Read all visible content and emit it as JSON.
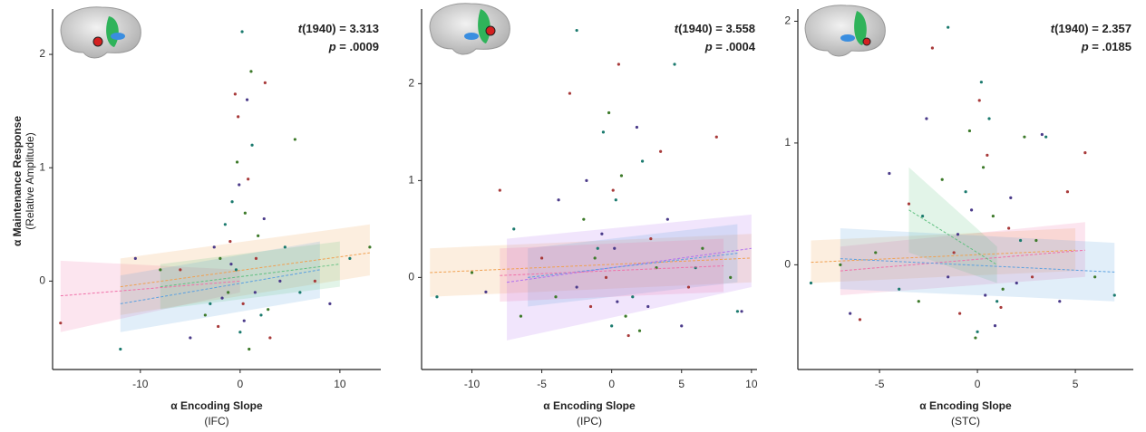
{
  "chart_data": [
    {
      "type": "scatter",
      "x_label": "α Encoding Slope",
      "x_sublabel": "(IFC)",
      "y_label": "α Maintenance Response",
      "y_sublabel": "(Relative Amplitude)",
      "annotations": [
        "t(1940) = 3.313",
        "p = .0009"
      ],
      "xlim": [
        -18.8,
        14.1
      ],
      "xticks": [
        -10,
        0,
        10
      ],
      "ylim": [
        -0.78,
        2.4
      ],
      "yticks": [
        0,
        1,
        2
      ],
      "series": [
        {
          "color": "#1b7a6e",
          "x": [
            0.2,
            -1.5,
            2.1,
            -0.4,
            1.2,
            -3.0,
            4.5,
            0.0,
            -0.8,
            6.0,
            -12.0,
            11.0
          ],
          "values": [
            2.2,
            0.5,
            -0.3,
            0.1,
            1.2,
            -0.2,
            0.3,
            -0.45,
            0.7,
            -0.1,
            -0.6,
            0.2
          ]
        },
        {
          "color": "#a83a3a",
          "x": [
            -0.5,
            1.6,
            -2.2,
            0.8,
            3.0,
            -6.0,
            0.3,
            -1.0,
            7.5,
            -18.0,
            2.5,
            -0.2
          ],
          "values": [
            1.65,
            0.2,
            -0.4,
            0.9,
            -0.5,
            0.1,
            -0.2,
            0.35,
            0.0,
            -0.37,
            1.75,
            1.45
          ]
        },
        {
          "color": "#3d7a2a",
          "x": [
            0.5,
            -1.2,
            1.8,
            -3.5,
            -0.3,
            2.8,
            5.5,
            -8.0,
            0.9,
            13.0,
            -2.0,
            1.1
          ],
          "values": [
            0.6,
            -0.1,
            0.4,
            -0.3,
            1.05,
            -0.25,
            1.25,
            0.1,
            -0.6,
            0.3,
            0.2,
            1.85
          ]
        },
        {
          "color": "#4b3b8a",
          "x": [
            -0.9,
            0.4,
            2.4,
            -2.6,
            1.5,
            -5.0,
            4.0,
            -0.1,
            -10.5,
            9.0,
            0.7,
            -1.8
          ],
          "values": [
            0.15,
            -0.35,
            0.55,
            0.3,
            -0.1,
            -0.5,
            0.0,
            0.85,
            0.2,
            -0.2,
            1.6,
            -0.15
          ]
        }
      ],
      "fits": [
        {
          "color": "#f06fa8",
          "x": [
            -18,
            0
          ],
          "values": [
            -0.13,
            0.0
          ],
          "lower": [
            -0.45,
            -0.1
          ],
          "upper": [
            0.18,
            0.1
          ]
        },
        {
          "color": "#f0a050",
          "x": [
            -12,
            13
          ],
          "values": [
            -0.05,
            0.25
          ],
          "lower": [
            -0.3,
            0.05
          ],
          "upper": [
            0.2,
            0.5
          ]
        },
        {
          "color": "#5aa0e0",
          "x": [
            -12,
            8
          ],
          "values": [
            -0.2,
            0.1
          ],
          "lower": [
            -0.45,
            -0.15
          ],
          "upper": [
            0.05,
            0.35
          ]
        },
        {
          "color": "#60c080",
          "x": [
            -8,
            10
          ],
          "values": [
            -0.05,
            0.15
          ],
          "lower": [
            -0.25,
            -0.05
          ],
          "upper": [
            0.15,
            0.35
          ]
        }
      ]
    },
    {
      "type": "scatter",
      "x_label": "α Encoding Slope",
      "x_sublabel": "(IPC)",
      "annotations": [
        "t(1940) = 3.558",
        "p = .0004"
      ],
      "xlim": [
        -13.6,
        10.4
      ],
      "xticks": [
        -10,
        -5,
        0,
        5,
        10
      ],
      "ylim": [
        -0.95,
        2.77
      ],
      "yticks": [
        0,
        1,
        2
      ],
      "series": [
        {
          "color": "#1b7a6e",
          "x": [
            -2.5,
            0.3,
            1.5,
            -1.0,
            4.5,
            -7.0,
            0.0,
            2.2,
            -12.5,
            9.0,
            -0.6,
            6.0
          ],
          "values": [
            2.55,
            0.8,
            -0.2,
            0.3,
            2.2,
            0.5,
            -0.5,
            1.2,
            -0.2,
            -0.35,
            1.5,
            0.1
          ]
        },
        {
          "color": "#a83a3a",
          "x": [
            0.5,
            -1.5,
            2.8,
            -3.0,
            0.1,
            5.5,
            -5.0,
            1.2,
            7.5,
            -0.4,
            -8.0,
            3.5
          ],
          "values": [
            2.2,
            -0.3,
            0.4,
            1.9,
            0.9,
            -0.1,
            0.2,
            -0.6,
            1.45,
            0.0,
            0.9,
            1.3
          ]
        },
        {
          "color": "#3d7a2a",
          "x": [
            -0.2,
            1.0,
            -2.0,
            3.2,
            -4.0,
            0.7,
            6.5,
            -6.5,
            -1.2,
            2.0,
            -10.0,
            8.5
          ],
          "values": [
            1.7,
            -0.4,
            0.6,
            0.1,
            -0.2,
            1.05,
            0.3,
            -0.4,
            0.2,
            -0.55,
            0.05,
            0.0
          ]
        },
        {
          "color": "#4b3b8a",
          "x": [
            1.8,
            -0.7,
            0.4,
            -2.5,
            4.0,
            -1.8,
            2.6,
            -9.0,
            5.0,
            0.2,
            -3.8,
            9.3
          ],
          "values": [
            1.55,
            0.45,
            -0.25,
            -0.1,
            0.6,
            1.0,
            -0.3,
            -0.15,
            -0.5,
            0.3,
            0.8,
            -0.35
          ]
        }
      ],
      "fits": [
        {
          "color": "#f0a050",
          "x": [
            -13,
            10
          ],
          "values": [
            0.05,
            0.2
          ],
          "lower": [
            -0.2,
            -0.05
          ],
          "upper": [
            0.3,
            0.45
          ]
        },
        {
          "color": "#b070f0",
          "x": [
            -7.5,
            10
          ],
          "values": [
            -0.05,
            0.3
          ],
          "lower": [
            -0.65,
            -0.1
          ],
          "upper": [
            0.4,
            0.65
          ]
        },
        {
          "color": "#5aa0e0",
          "x": [
            -6,
            9
          ],
          "values": [
            0.0,
            0.25
          ],
          "lower": [
            -0.3,
            -0.05
          ],
          "upper": [
            0.3,
            0.55
          ]
        },
        {
          "color": "#f06fa8",
          "x": [
            -8,
            8
          ],
          "values": [
            0.02,
            0.12
          ],
          "lower": [
            -0.25,
            -0.15
          ],
          "upper": [
            0.3,
            0.4
          ]
        }
      ]
    },
    {
      "type": "scatter",
      "x_label": "α Encoding Slope",
      "x_sublabel": "(STC)",
      "annotations": [
        "t(1940) = 2.357",
        "p = .0185"
      ],
      "xlim": [
        -9.17,
        7.96
      ],
      "xticks": [
        -5,
        0,
        5
      ],
      "ylim": [
        -0.86,
        2.1
      ],
      "yticks": [
        0,
        1,
        2
      ],
      "series": [
        {
          "color": "#1b7a6e",
          "x": [
            -1.5,
            0.2,
            1.0,
            -0.6,
            2.2,
            -4.0,
            3.5,
            0.0,
            -8.5,
            7.0,
            -2.8,
            0.6
          ],
          "values": [
            1.95,
            1.5,
            -0.3,
            0.6,
            0.2,
            -0.2,
            1.05,
            -0.55,
            -0.15,
            -0.25,
            0.4,
            1.2
          ]
        },
        {
          "color": "#a83a3a",
          "x": [
            -2.3,
            0.5,
            -0.9,
            1.6,
            -3.5,
            2.8,
            0.1,
            -6.0,
            4.6,
            -1.2,
            5.5,
            1.2
          ],
          "values": [
            1.78,
            0.9,
            -0.4,
            0.3,
            0.5,
            -0.1,
            1.35,
            -0.45,
            0.6,
            0.1,
            0.92,
            -0.35
          ]
        },
        {
          "color": "#3d7a2a",
          "x": [
            -0.4,
            1.3,
            -1.8,
            0.8,
            -5.2,
            3.0,
            -0.1,
            2.4,
            -3.0,
            6.0,
            -7.0,
            0.3
          ],
          "values": [
            1.1,
            -0.2,
            0.7,
            0.4,
            0.1,
            0.2,
            -0.6,
            1.05,
            -0.3,
            -0.1,
            0.0,
            0.8
          ]
        },
        {
          "color": "#4b3b8a",
          "x": [
            0.9,
            -1.0,
            2.0,
            -2.6,
            -0.3,
            4.2,
            -4.5,
            1.7,
            -6.5,
            3.3,
            0.4,
            -1.5
          ],
          "values": [
            -0.5,
            0.25,
            -0.15,
            1.2,
            0.45,
            -0.3,
            0.75,
            0.55,
            -0.4,
            1.07,
            -0.25,
            -0.1
          ]
        }
      ],
      "fits": [
        {
          "color": "#f0a050",
          "x": [
            -8.5,
            5
          ],
          "values": [
            0.02,
            0.12
          ],
          "lower": [
            -0.15,
            -0.05
          ],
          "upper": [
            0.2,
            0.3
          ]
        },
        {
          "color": "#f06fa8",
          "x": [
            -7,
            5.5
          ],
          "values": [
            -0.05,
            0.12
          ],
          "lower": [
            -0.25,
            -0.1
          ],
          "upper": [
            0.15,
            0.35
          ]
        },
        {
          "color": "#60c080",
          "x": [
            -3.5,
            1
          ],
          "values": [
            0.45,
            0.0
          ],
          "lower": [
            0.1,
            -0.15
          ],
          "upper": [
            0.8,
            0.15
          ]
        },
        {
          "color": "#5aa0e0",
          "x": [
            -7,
            7
          ],
          "values": [
            0.05,
            -0.06
          ],
          "lower": [
            -0.2,
            -0.3
          ],
          "upper": [
            0.3,
            0.18
          ]
        }
      ]
    }
  ]
}
